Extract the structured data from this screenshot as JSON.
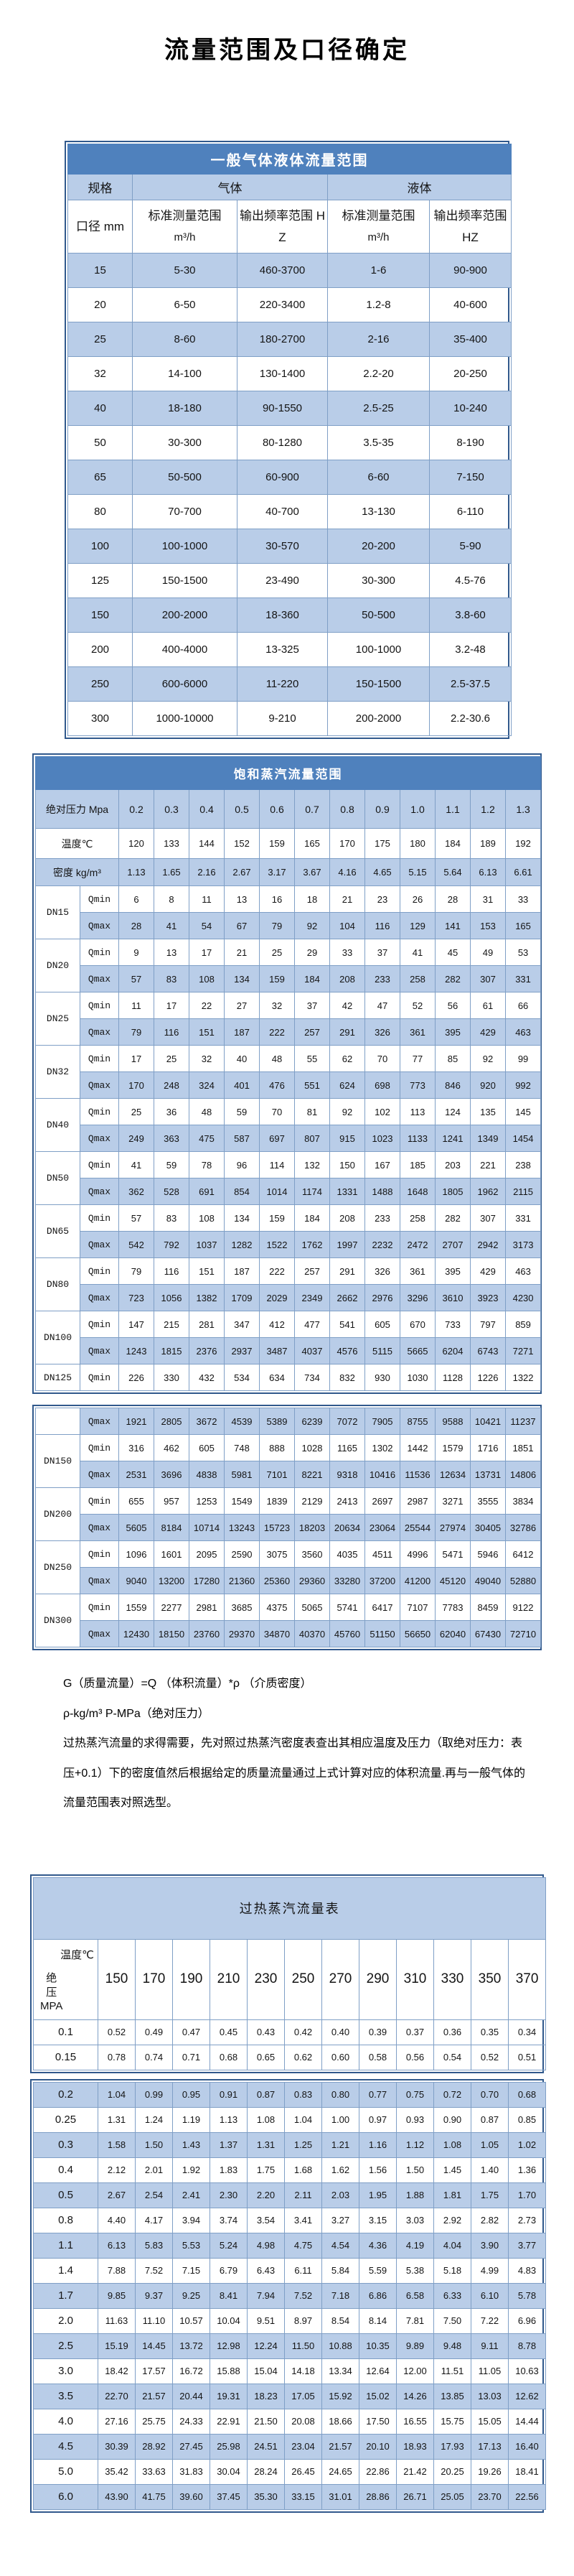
{
  "page_title": "流量范围及口径确定",
  "colors": {
    "header_bar": "#4f81bd",
    "row_highlight": "#b9cde8",
    "cell_border": "#7f9fc6",
    "table_frame": "#31598c"
  },
  "general": {
    "title": "一般气体液体流量范围",
    "spec_header": "规格",
    "gas_header": "气体",
    "liquid_header": "液体",
    "diameter_header": "口径 mm",
    "range_header": "标准测量范围",
    "range_unit": "m³/h",
    "freq_header": "输出频率范围 HZ",
    "rows": [
      [
        "15",
        "5-30",
        "460-3700",
        "1-6",
        "90-900"
      ],
      [
        "20",
        "6-50",
        "220-3400",
        "1.2-8",
        "40-600"
      ],
      [
        "25",
        "8-60",
        "180-2700",
        "2-16",
        "35-400"
      ],
      [
        "32",
        "14-100",
        "130-1400",
        "2.2-20",
        "20-250"
      ],
      [
        "40",
        "18-180",
        "90-1550",
        "2.5-25",
        "10-240"
      ],
      [
        "50",
        "30-300",
        "80-1280",
        "3.5-35",
        "8-190"
      ],
      [
        "65",
        "50-500",
        "60-900",
        "6-60",
        "7-150"
      ],
      [
        "80",
        "70-700",
        "40-700",
        "13-130",
        "6-110"
      ],
      [
        "100",
        "100-1000",
        "30-570",
        "20-200",
        "5-90"
      ],
      [
        "125",
        "150-1500",
        "23-490",
        "30-300",
        "4.5-76"
      ],
      [
        "150",
        "200-2000",
        "18-360",
        "50-500",
        "3.8-60"
      ],
      [
        "200",
        "400-4000",
        "13-325",
        "100-1000",
        "3.2-48"
      ],
      [
        "250",
        "600-6000",
        "11-220",
        "150-1500",
        "2.5-37.5"
      ],
      [
        "300",
        "1000-10000",
        "9-210",
        "200-2000",
        "2.2-30.6"
      ]
    ]
  },
  "saturated": {
    "title": "饱和蒸汽流量范围",
    "pressure_label": "绝对压力 Mpa",
    "pressures": [
      "0.2",
      "0.3",
      "0.4",
      "0.5",
      "0.6",
      "0.7",
      "0.8",
      "0.9",
      "1.0",
      "1.1",
      "1.2",
      "1.3"
    ],
    "temp_label": "温度℃",
    "temps": [
      "120",
      "133",
      "144",
      "152",
      "159",
      "165",
      "170",
      "175",
      "180",
      "184",
      "189",
      "192"
    ],
    "density_label": "密度 kg/m³",
    "densities": [
      "1.13",
      "1.65",
      "2.16",
      "2.67",
      "3.17",
      "3.67",
      "4.16",
      "4.65",
      "5.15",
      "5.64",
      "6.13",
      "6.61"
    ],
    "qmin_label": "Qmin",
    "qmax_label": "Qmax",
    "block1": [
      {
        "dn": "DN15",
        "qmin": [
          "6",
          "8",
          "11",
          "13",
          "16",
          "18",
          "21",
          "23",
          "26",
          "28",
          "31",
          "33"
        ],
        "qmax": [
          "28",
          "41",
          "54",
          "67",
          "79",
          "92",
          "104",
          "116",
          "129",
          "141",
          "153",
          "165"
        ]
      },
      {
        "dn": "DN20",
        "qmin": [
          "9",
          "13",
          "17",
          "21",
          "25",
          "29",
          "33",
          "37",
          "41",
          "45",
          "49",
          "53"
        ],
        "qmax": [
          "57",
          "83",
          "108",
          "134",
          "159",
          "184",
          "208",
          "233",
          "258",
          "282",
          "307",
          "331"
        ]
      },
      {
        "dn": "DN25",
        "qmin": [
          "11",
          "17",
          "22",
          "27",
          "32",
          "37",
          "42",
          "47",
          "52",
          "56",
          "61",
          "66"
        ],
        "qmax": [
          "79",
          "116",
          "151",
          "187",
          "222",
          "257",
          "291",
          "326",
          "361",
          "395",
          "429",
          "463"
        ]
      },
      {
        "dn": "DN32",
        "qmin": [
          "17",
          "25",
          "32",
          "40",
          "48",
          "55",
          "62",
          "70",
          "77",
          "85",
          "92",
          "99"
        ],
        "qmax": [
          "170",
          "248",
          "324",
          "401",
          "476",
          "551",
          "624",
          "698",
          "773",
          "846",
          "920",
          "992"
        ]
      },
      {
        "dn": "DN40",
        "qmin": [
          "25",
          "36",
          "48",
          "59",
          "70",
          "81",
          "92",
          "102",
          "113",
          "124",
          "135",
          "145"
        ],
        "qmax": [
          "249",
          "363",
          "475",
          "587",
          "697",
          "807",
          "915",
          "1023",
          "1133",
          "1241",
          "1349",
          "1454"
        ]
      },
      {
        "dn": "DN50",
        "qmin": [
          "41",
          "59",
          "78",
          "96",
          "114",
          "132",
          "150",
          "167",
          "185",
          "203",
          "221",
          "238"
        ],
        "qmax": [
          "362",
          "528",
          "691",
          "854",
          "1014",
          "1174",
          "1331",
          "1488",
          "1648",
          "1805",
          "1962",
          "2115"
        ]
      },
      {
        "dn": "DN65",
        "qmin": [
          "57",
          "83",
          "108",
          "134",
          "159",
          "184",
          "208",
          "233",
          "258",
          "282",
          "307",
          "331"
        ],
        "qmax": [
          "542",
          "792",
          "1037",
          "1282",
          "1522",
          "1762",
          "1997",
          "2232",
          "2472",
          "2707",
          "2942",
          "3173"
        ]
      },
      {
        "dn": "DN80",
        "qmin": [
          "79",
          "116",
          "151",
          "187",
          "222",
          "257",
          "291",
          "326",
          "361",
          "395",
          "429",
          "463"
        ],
        "qmax": [
          "723",
          "1056",
          "1382",
          "1709",
          "2029",
          "2349",
          "2662",
          "2976",
          "3296",
          "3610",
          "3923",
          "4230"
        ]
      },
      {
        "dn": "DN100",
        "qmin": [
          "147",
          "215",
          "281",
          "347",
          "412",
          "477",
          "541",
          "605",
          "670",
          "733",
          "797",
          "859"
        ],
        "qmax": [
          "1243",
          "1815",
          "2376",
          "2937",
          "3487",
          "4037",
          "4576",
          "5115",
          "5665",
          "6204",
          "6743",
          "7271"
        ]
      },
      {
        "dn": "DN125",
        "qmin": [
          "226",
          "330",
          "432",
          "534",
          "634",
          "734",
          "832",
          "930",
          "1030",
          "1128",
          "1226",
          "1322"
        ]
      }
    ],
    "block2": [
      {
        "dn": "",
        "qmax": [
          "1921",
          "2805",
          "3672",
          "4539",
          "5389",
          "6239",
          "7072",
          "7905",
          "8755",
          "9588",
          "10421",
          "11237"
        ]
      },
      {
        "dn": "DN150",
        "qmin": [
          "316",
          "462",
          "605",
          "748",
          "888",
          "1028",
          "1165",
          "1302",
          "1442",
          "1579",
          "1716",
          "1851"
        ],
        "qmax": [
          "2531",
          "3696",
          "4838",
          "5981",
          "7101",
          "8221",
          "9318",
          "10416",
          "11536",
          "12634",
          "13731",
          "14806"
        ]
      },
      {
        "dn": "DN200",
        "qmin": [
          "655",
          "957",
          "1253",
          "1549",
          "1839",
          "2129",
          "2413",
          "2697",
          "2987",
          "3271",
          "3555",
          "3834"
        ],
        "qmax": [
          "5605",
          "8184",
          "10714",
          "13243",
          "15723",
          "18203",
          "20634",
          "23064",
          "25544",
          "27974",
          "30405",
          "32786"
        ]
      },
      {
        "dn": "DN250",
        "qmin": [
          "1096",
          "1601",
          "2095",
          "2590",
          "3075",
          "3560",
          "4035",
          "4511",
          "4996",
          "5471",
          "5946",
          "6412"
        ],
        "qmax": [
          "9040",
          "13200",
          "17280",
          "21360",
          "25360",
          "29360",
          "33280",
          "37200",
          "41200",
          "45120",
          "49040",
          "52880"
        ]
      },
      {
        "dn": "DN300",
        "qmin": [
          "1559",
          "2277",
          "2981",
          "3685",
          "4375",
          "5065",
          "5741",
          "6417",
          "7107",
          "7783",
          "8459",
          "9122"
        ],
        "qmax": [
          "12430",
          "18150",
          "23760",
          "29370",
          "34870",
          "40370",
          "45760",
          "51150",
          "56650",
          "62040",
          "67430",
          "72710"
        ]
      }
    ]
  },
  "notes": [
    "G（质量流量）=Q （体积流量）*ρ （介质密度）",
    "ρ-kg/m³ P-MPa（绝对压力）",
    "过热蒸汽流量的求得需要，先对照过热蒸汽密度表查出其相应温度及压力（取绝对压力：表压+0.1）下的密度值然后根据给定的质量流量通过上式计算对应的体积流量.再与一般气体的流量范围表对照选型。"
  ],
  "superheated": {
    "title": "过热蒸汽流量表",
    "corner": {
      "temp": "温度℃",
      "pressure": "绝压",
      "unit": "MPA"
    },
    "temps": [
      "150",
      "170",
      "190",
      "210",
      "230",
      "250",
      "270",
      "290",
      "310",
      "330",
      "350",
      "370"
    ],
    "block1": [
      {
        "p": "0.1",
        "v": [
          "0.52",
          "0.49",
          "0.47",
          "0.45",
          "0.43",
          "0.42",
          "0.40",
          "0.39",
          "0.37",
          "0.36",
          "0.35",
          "0.34"
        ]
      },
      {
        "p": "0.15",
        "v": [
          "0.78",
          "0.74",
          "0.71",
          "0.68",
          "0.65",
          "0.62",
          "0.60",
          "0.58",
          "0.56",
          "0.54",
          "0.52",
          "0.51"
        ]
      }
    ],
    "block2": [
      {
        "p": "0.2",
        "v": [
          "1.04",
          "0.99",
          "0.95",
          "0.91",
          "0.87",
          "0.83",
          "0.80",
          "0.77",
          "0.75",
          "0.72",
          "0.70",
          "0.68"
        ]
      },
      {
        "p": "0.25",
        "v": [
          "1.31",
          "1.24",
          "1.19",
          "1.13",
          "1.08",
          "1.04",
          "1.00",
          "0.97",
          "0.93",
          "0.90",
          "0.87",
          "0.85"
        ]
      },
      {
        "p": "0.3",
        "v": [
          "1.58",
          "1.50",
          "1.43",
          "1.37",
          "1.31",
          "1.25",
          "1.21",
          "1.16",
          "1.12",
          "1.08",
          "1.05",
          "1.02"
        ]
      },
      {
        "p": "0.4",
        "v": [
          "2.12",
          "2.01",
          "1.92",
          "1.83",
          "1.75",
          "1.68",
          "1.62",
          "1.56",
          "1.50",
          "1.45",
          "1.40",
          "1.36"
        ]
      },
      {
        "p": "0.5",
        "v": [
          "2.67",
          "2.54",
          "2.41",
          "2.30",
          "2.20",
          "2.11",
          "2.03",
          "1.95",
          "1.88",
          "1.81",
          "1.75",
          "1.70"
        ]
      },
      {
        "p": "0.8",
        "v": [
          "4.40",
          "4.17",
          "3.94",
          "3.74",
          "3.54",
          "3.41",
          "3.27",
          "3.15",
          "3.03",
          "2.92",
          "2.82",
          "2.73"
        ]
      },
      {
        "p": "1.1",
        "v": [
          "6.13",
          "5.83",
          "5.53",
          "5.24",
          "4.98",
          "4.75",
          "4.54",
          "4.36",
          "4.19",
          "4.04",
          "3.90",
          "3.77"
        ]
      },
      {
        "p": "1.4",
        "v": [
          "7.88",
          "7.52",
          "7.15",
          "6.79",
          "6.43",
          "6.11",
          "5.84",
          "5.59",
          "5.38",
          "5.18",
          "4.99",
          "4.83"
        ]
      },
      {
        "p": "1.7",
        "v": [
          "9.85",
          "9.37",
          "9.25",
          "8.41",
          "7.94",
          "7.52",
          "7.18",
          "6.86",
          "6.58",
          "6.33",
          "6.10",
          "5.78"
        ]
      },
      {
        "p": "2.0",
        "v": [
          "11.63",
          "11.10",
          "10.57",
          "10.04",
          "9.51",
          "8.97",
          "8.54",
          "8.14",
          "7.81",
          "7.50",
          "7.22",
          "6.96"
        ]
      },
      {
        "p": "2.5",
        "v": [
          "15.19",
          "14.45",
          "13.72",
          "12.98",
          "12.24",
          "11.50",
          "10.88",
          "10.35",
          "9.89",
          "9.48",
          "9.11",
          "8.78"
        ]
      },
      {
        "p": "3.0",
        "v": [
          "18.42",
          "17.57",
          "16.72",
          "15.88",
          "15.04",
          "14.18",
          "13.34",
          "12.64",
          "12.00",
          "11.51",
          "11.05",
          "10.63"
        ]
      },
      {
        "p": "3.5",
        "v": [
          "22.70",
          "21.57",
          "20.44",
          "19.31",
          "18.23",
          "17.05",
          "15.92",
          "15.02",
          "14.26",
          "13.85",
          "13.03",
          "12.62"
        ]
      },
      {
        "p": "4.0",
        "v": [
          "27.16",
          "25.75",
          "24.33",
          "22.91",
          "21.50",
          "20.08",
          "18.66",
          "17.50",
          "16.55",
          "15.75",
          "15.05",
          "14.44"
        ]
      },
      {
        "p": "4.5",
        "v": [
          "30.39",
          "28.92",
          "27.45",
          "25.98",
          "24.51",
          "23.04",
          "21.57",
          "20.10",
          "18.93",
          "17.93",
          "17.13",
          "16.40"
        ]
      },
      {
        "p": "5.0",
        "v": [
          "35.42",
          "33.63",
          "31.83",
          "30.04",
          "28.24",
          "26.45",
          "24.65",
          "22.86",
          "21.42",
          "20.25",
          "19.26",
          "18.41"
        ]
      },
      {
        "p": "6.0",
        "v": [
          "43.90",
          "41.75",
          "39.60",
          "37.45",
          "35.30",
          "33.15",
          "31.01",
          "28.86",
          "26.71",
          "25.05",
          "23.70",
          "22.56"
        ]
      }
    ]
  }
}
